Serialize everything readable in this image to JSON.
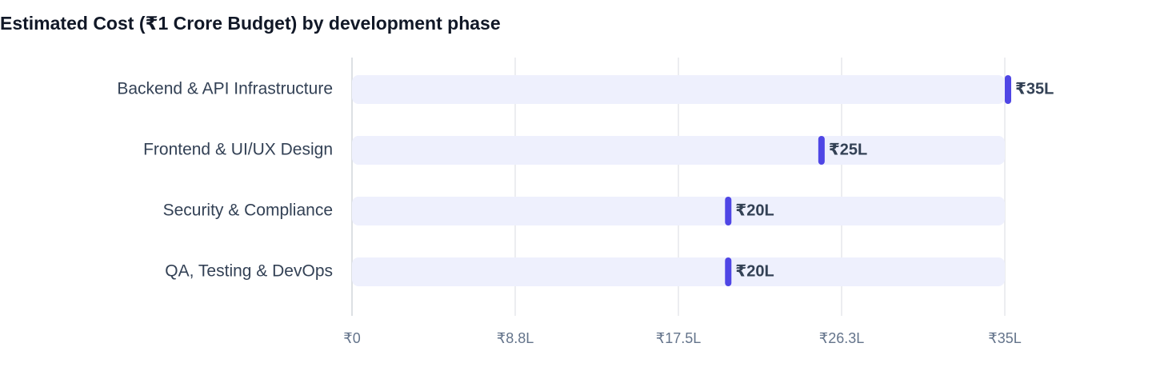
{
  "chart_data": {
    "type": "bar",
    "title": "Estimated Cost (₹1 Crore Budget) by development phase",
    "categories": [
      "Backend & API Infrastructure",
      "Frontend & UI/UX Design",
      "Security & Compliance",
      "QA, Testing & DevOps"
    ],
    "values": [
      35,
      25,
      20,
      20
    ],
    "value_labels": [
      "₹35L",
      "₹25L",
      "₹20L",
      "₹20L"
    ],
    "color": "#4f46e5",
    "track_color": "#eef0fd",
    "xlim": [
      0,
      35
    ],
    "xticks": [
      {
        "value": 0,
        "label": "₹0"
      },
      {
        "value": 8.75,
        "label": "₹8.8L"
      },
      {
        "value": 17.5,
        "label": "₹17.5L"
      },
      {
        "value": 26.25,
        "label": "₹26.3L"
      },
      {
        "value": 35,
        "label": "₹35L"
      }
    ],
    "grid": true
  }
}
